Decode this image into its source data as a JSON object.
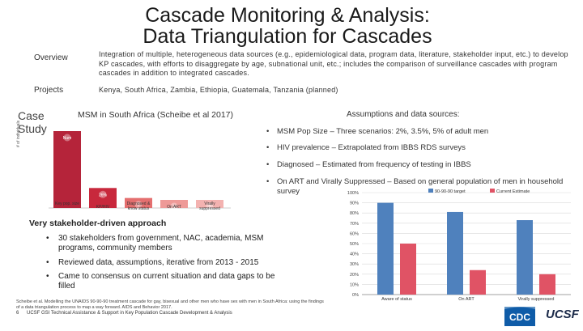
{
  "header": {
    "title_line1": "Cascade Monitoring & Analysis:",
    "title_line2": "Data Triangulation for Cascades"
  },
  "overview": {
    "label": "Overview",
    "text": "Integration of multiple, heterogeneous data sources (e.g., epidemiological data, program data, literature, stakeholder input, etc.) to develop KP cascades, with efforts to disaggregate by age, subnational unit, etc.; includes the comparison of surveillance cascades with program cascades in addition to integrated cascades."
  },
  "projects": {
    "label": "Projects",
    "text": "Kenya, South Africa, Zambia, Ethiopia, Guatemala, Tanzania (planned)"
  },
  "case_study": {
    "label": "Case Study",
    "chart_title": "MSM in South Africa (Scheibe et al 2017)"
  },
  "assumptions": {
    "title": "Assumptions and data sources:",
    "items": [
      "MSM Pop Size – Three scenarios: 2%, 3.5%, 5% of adult men",
      "HIV prevalence – Extrapolated from IBBS RDS surveys",
      "Diagnosed – Estimated from frequency of testing in IBBS",
      "On ART and Virally Suppressed – Based on general population of men in household survey"
    ]
  },
  "cascade_chart": {
    "y_label": "# of individuals",
    "categories": [
      "Key pop. size",
      "KP/HIV",
      "Diagnosed & know status",
      "On ART",
      "Virally suppressed"
    ],
    "values": [
      100,
      26,
      13,
      7,
      3
    ],
    "bar_texts": [
      "Num",
      "26%",
      "1",
      "1",
      "1"
    ],
    "colors": [
      "#b5243a",
      "#c8283c",
      "#e46f6f",
      "#ee9a98",
      "#f3b2b0"
    ]
  },
  "chart_data": {
    "type": "bar",
    "categories": [
      "Aware of status",
      "On ART",
      "Virally suppressed"
    ],
    "series": [
      {
        "name": "90-90-90 target",
        "values": [
          90,
          81,
          73
        ],
        "color": "#4f81bd"
      },
      {
        "name": "Current Estimate",
        "values": [
          50,
          24,
          20
        ],
        "color": "#e05365"
      }
    ],
    "yticks": [
      "0%",
      "10%",
      "20%",
      "30%",
      "40%",
      "50%",
      "60%",
      "70%",
      "80%",
      "90%",
      "100%"
    ],
    "ylim": [
      0,
      100
    ],
    "legend": "top-right"
  },
  "stakeholder": {
    "title": "Very stakeholder-driven approach",
    "items": [
      "30 stakeholders from government, NAC, academia, MSM programs, community members",
      "Reviewed data, assumptions, iterative from 2013 - 2015",
      "Came to consensus on current situation and data gaps to be filled"
    ]
  },
  "footer": {
    "citation": "Scheibe et al. Modelling the UNAIDS 90-90-90 treatment cascade for gay, bisexual and other men who have sex with men in South Africa: using the findings of a data triangulation process to map a way forward. AIDS and Behavior 2017.",
    "page_number": "6",
    "org_line": "UCSF GSI Technical Assistance & Support in Key Population Cascade Development & Analysis",
    "logo_cdc": "CDC",
    "logo_ucsf": "UCSF"
  }
}
